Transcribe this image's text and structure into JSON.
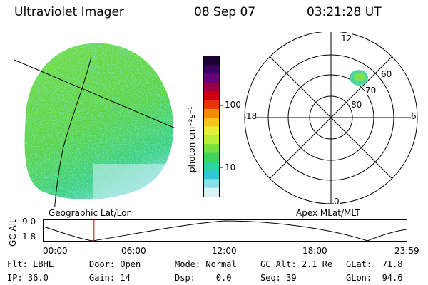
{
  "header": {
    "title": "Ultraviolet Imager",
    "date": "08 Sep 07",
    "time": "03:21:28 UT"
  },
  "image_panel": {
    "caption": "Geographic Lat/Lon"
  },
  "colorbar": {
    "label": "photon cm⁻²s⁻¹",
    "ticks": [
      "100",
      "10"
    ],
    "colors": [
      "#1a0033",
      "#3a0066",
      "#66007a",
      "#990044",
      "#cc0011",
      "#e8340a",
      "#f28a0a",
      "#f7c51a",
      "#e7ee3a",
      "#b8ee3a",
      "#78e03a",
      "#3fd45a",
      "#2ed4a0",
      "#2ec8d0",
      "#88e0e8",
      "#d8f2f6"
    ]
  },
  "polar_plot": {
    "caption": "Apex MLat/MLT",
    "mlt_labels": {
      "top": "12",
      "left": "18",
      "right": "6",
      "bottom": "0"
    },
    "mlat_labels": [
      "60",
      "70",
      "80"
    ]
  },
  "timeline": {
    "ylabel": "GC Alt",
    "y_ticks": [
      "9.0",
      "1.8"
    ],
    "x_ticks": [
      "00:00",
      "06:00",
      "12:00",
      "18:00",
      "23:59"
    ],
    "current_time_fraction": 0.139
  },
  "status": {
    "flt_label": "Flt:",
    "flt_value": "LBHL",
    "ip_label": "IP:",
    "ip_value": "36.0",
    "door_label": "Door:",
    "door_value": "Open",
    "gain_label": "Gain:",
    "gain_value": "14",
    "mode_label": "Mode:",
    "mode_value": "Normal",
    "dsp_label": "Dsp:",
    "dsp_value": "0.0",
    "gcalt_label": "GC Alt:",
    "gcalt_value": "2.1 Re",
    "seq_label": "Seq:",
    "seq_value": "39",
    "glat_label": "GLat:",
    "glat_value": "71.8",
    "glon_label": "GLon:",
    "glon_value": "94.6"
  }
}
